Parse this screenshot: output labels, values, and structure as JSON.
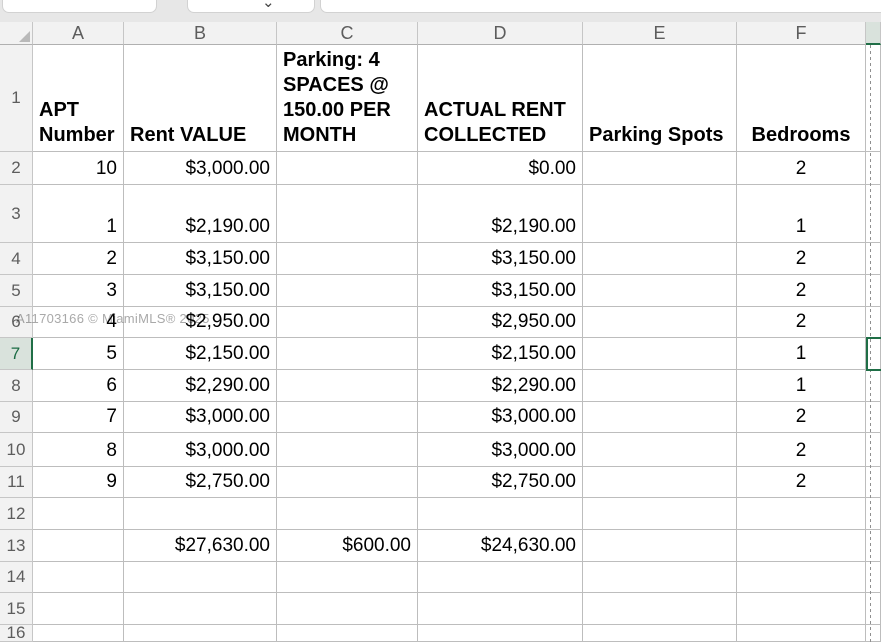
{
  "app": {
    "watermark": "A11703166 © MiamiMLS® 2025"
  },
  "icons": {
    "chevron_down": "⌄"
  },
  "colors": {
    "selection_green": "#1f6e46",
    "header_bg": "#f2f2f2",
    "selected_header_bg": "#d9e2dc",
    "gridline": "#bdbdbd",
    "watermark_gray": "#a9a9a9"
  },
  "selection": {
    "active_row_header": "7"
  },
  "sheet": {
    "column_headers": [
      "A",
      "B",
      "C",
      "D",
      "E",
      "F"
    ],
    "row_headers": [
      "1",
      "2",
      "3",
      "4",
      "5",
      "6",
      "7",
      "8",
      "9",
      "10",
      "11",
      "12",
      "13",
      "14",
      "15",
      "16"
    ],
    "rows": [
      {
        "cells": {
          "A": "APT Number",
          "B": "Rent VALUE",
          "C": "Parking: 4 SPACES @ 150.00 PER MONTH",
          "D": "ACTUAL RENT COLLECTED",
          "E": "Parking Spots",
          "F": "Bedrooms"
        }
      },
      {
        "cells": {
          "A": "10",
          "B": "$3,000.00",
          "C": "",
          "D": "$0.00",
          "E": "",
          "F": "2"
        }
      },
      {
        "cells": {
          "A": "1",
          "B": "$2,190.00",
          "C": "",
          "D": "$2,190.00",
          "E": "",
          "F": "1"
        }
      },
      {
        "cells": {
          "A": "2",
          "B": "$3,150.00",
          "C": "",
          "D": "$3,150.00",
          "E": "",
          "F": "2"
        }
      },
      {
        "cells": {
          "A": "3",
          "B": "$3,150.00",
          "C": "",
          "D": "$3,150.00",
          "E": "",
          "F": "2"
        }
      },
      {
        "cells": {
          "A": "4",
          "B": "$2,950.00",
          "C": "",
          "D": "$2,950.00",
          "E": "",
          "F": "2"
        }
      },
      {
        "cells": {
          "A": "5",
          "B": "$2,150.00",
          "C": "",
          "D": "$2,150.00",
          "E": "",
          "F": "1"
        }
      },
      {
        "cells": {
          "A": "6",
          "B": "$2,290.00",
          "C": "",
          "D": "$2,290.00",
          "E": "",
          "F": "1"
        }
      },
      {
        "cells": {
          "A": "7",
          "B": "$3,000.00",
          "C": "",
          "D": "$3,000.00",
          "E": "",
          "F": "2"
        }
      },
      {
        "cells": {
          "A": "8",
          "B": "$3,000.00",
          "C": "",
          "D": "$3,000.00",
          "E": "",
          "F": "2"
        }
      },
      {
        "cells": {
          "A": "9",
          "B": "$2,750.00",
          "C": "",
          "D": "$2,750.00",
          "E": "",
          "F": "2"
        }
      },
      {
        "cells": {
          "A": "",
          "B": "",
          "C": "",
          "D": "",
          "E": "",
          "F": ""
        }
      },
      {
        "cells": {
          "A": "",
          "B": "$27,630.00",
          "C": "$600.00",
          "D": "$24,630.00",
          "E": "",
          "F": ""
        }
      },
      {
        "cells": {
          "A": "",
          "B": "",
          "C": "",
          "D": "",
          "E": "",
          "F": ""
        }
      },
      {
        "cells": {
          "A": "",
          "B": "",
          "C": "",
          "D": "",
          "E": "",
          "F": ""
        }
      },
      {
        "cells": {
          "A": "",
          "B": "",
          "C": "",
          "D": "",
          "E": "",
          "F": ""
        }
      }
    ]
  }
}
